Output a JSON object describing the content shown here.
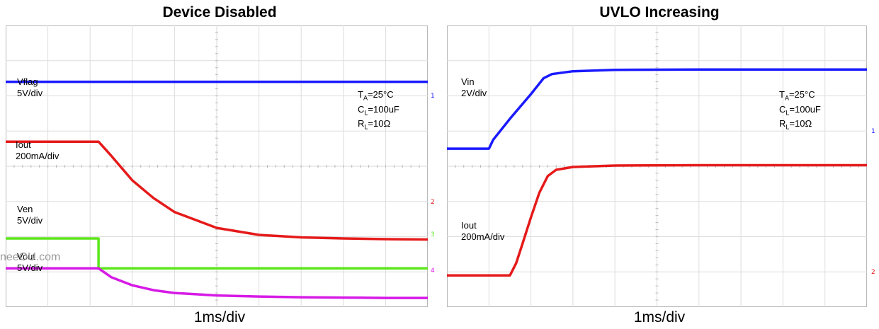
{
  "chart_data": [
    {
      "type": "line",
      "title": "Device Disabled",
      "xlabel": "1ms/div",
      "grid": true,
      "x_divisions": 10,
      "y_divisions": 8,
      "conditions": {
        "ta": "25°C",
        "cl": "100uF",
        "rl": "10Ω"
      },
      "series": [
        {
          "name": "Vflag",
          "scale": "5V/div",
          "color": "#1a1aff",
          "marker": "1",
          "x": [
            0,
            10
          ],
          "y": [
            6.4,
            6.4
          ]
        },
        {
          "name": "Iout",
          "scale": "200mA/div",
          "color": "#e51a1a",
          "marker": "2",
          "x": [
            0,
            2.2,
            2.5,
            3,
            3.5,
            4,
            5,
            6,
            7,
            8,
            9,
            10
          ],
          "y": [
            4.7,
            4.7,
            4.3,
            3.6,
            3.1,
            2.7,
            2.25,
            2.05,
            1.98,
            1.95,
            1.93,
            1.92
          ]
        },
        {
          "name": "Ven",
          "scale": "5V/div",
          "color": "#5ce61a",
          "marker": "3",
          "x": [
            0,
            2.2,
            2.2,
            10
          ],
          "y": [
            1.95,
            1.95,
            1.1,
            1.1
          ]
        },
        {
          "name": "Vout",
          "scale": "5V/div",
          "color": "#d61ae6",
          "marker": "4",
          "x": [
            0,
            2.2,
            2.5,
            3,
            3.5,
            4,
            5,
            6,
            7,
            8,
            9,
            10
          ],
          "y": [
            1.1,
            1.1,
            0.85,
            0.62,
            0.48,
            0.4,
            0.33,
            0.3,
            0.28,
            0.27,
            0.26,
            0.26
          ]
        }
      ]
    },
    {
      "type": "line",
      "title": "UVLO Increasing",
      "xlabel": "1ms/div",
      "grid": true,
      "x_divisions": 10,
      "y_divisions": 8,
      "conditions": {
        "ta": "25°C",
        "cl": "100uF",
        "rl": "10Ω"
      },
      "series": [
        {
          "name": "Vin",
          "scale": "2V/div",
          "color": "#1a1aff",
          "marker": "1",
          "x": [
            0,
            1,
            1.1,
            1.5,
            2,
            2.3,
            2.5,
            3,
            4,
            6,
            8,
            10
          ],
          "y": [
            4.5,
            4.5,
            4.75,
            5.35,
            6.05,
            6.5,
            6.62,
            6.7,
            6.74,
            6.75,
            6.75,
            6.75
          ]
        },
        {
          "name": "Iout",
          "scale": "200mA/div",
          "color": "#e51a1a",
          "marker": "2",
          "x": [
            0,
            1.5,
            1.65,
            1.8,
            2,
            2.2,
            2.4,
            2.6,
            3,
            4,
            6,
            8,
            10
          ],
          "y": [
            0.9,
            0.9,
            1.25,
            1.8,
            2.55,
            3.25,
            3.72,
            3.9,
            3.98,
            4.02,
            4.03,
            4.03,
            4.03
          ]
        }
      ]
    }
  ],
  "left": {
    "title": "Device Disabled",
    "footer": "1ms/div",
    "labels": {
      "vflag_name": "Vflag",
      "vflag_scale": "5V/div",
      "iout_name": "Iout",
      "iout_scale": "200mA/div",
      "ven_name": "Ven",
      "ven_scale": "5V/div",
      "vout_name": "Vout",
      "vout_scale": "5V/div"
    },
    "cond": {
      "ta": "=25°C",
      "cl": "=100uF",
      "rl": "=10Ω"
    },
    "markers": [
      "1",
      "2",
      "3",
      "4"
    ]
  },
  "right": {
    "title": "UVLO Increasing",
    "footer": "1ms/div",
    "labels": {
      "vin_name": "Vin",
      "vin_scale": "2V/div",
      "iout_name": "Iout",
      "iout_scale": "200mA/div"
    },
    "cond": {
      "ta": "=25°C",
      "cl": "=100uF",
      "rl": "=10Ω"
    },
    "markers": [
      "1",
      "2"
    ]
  },
  "watermark": "neeOU.com"
}
